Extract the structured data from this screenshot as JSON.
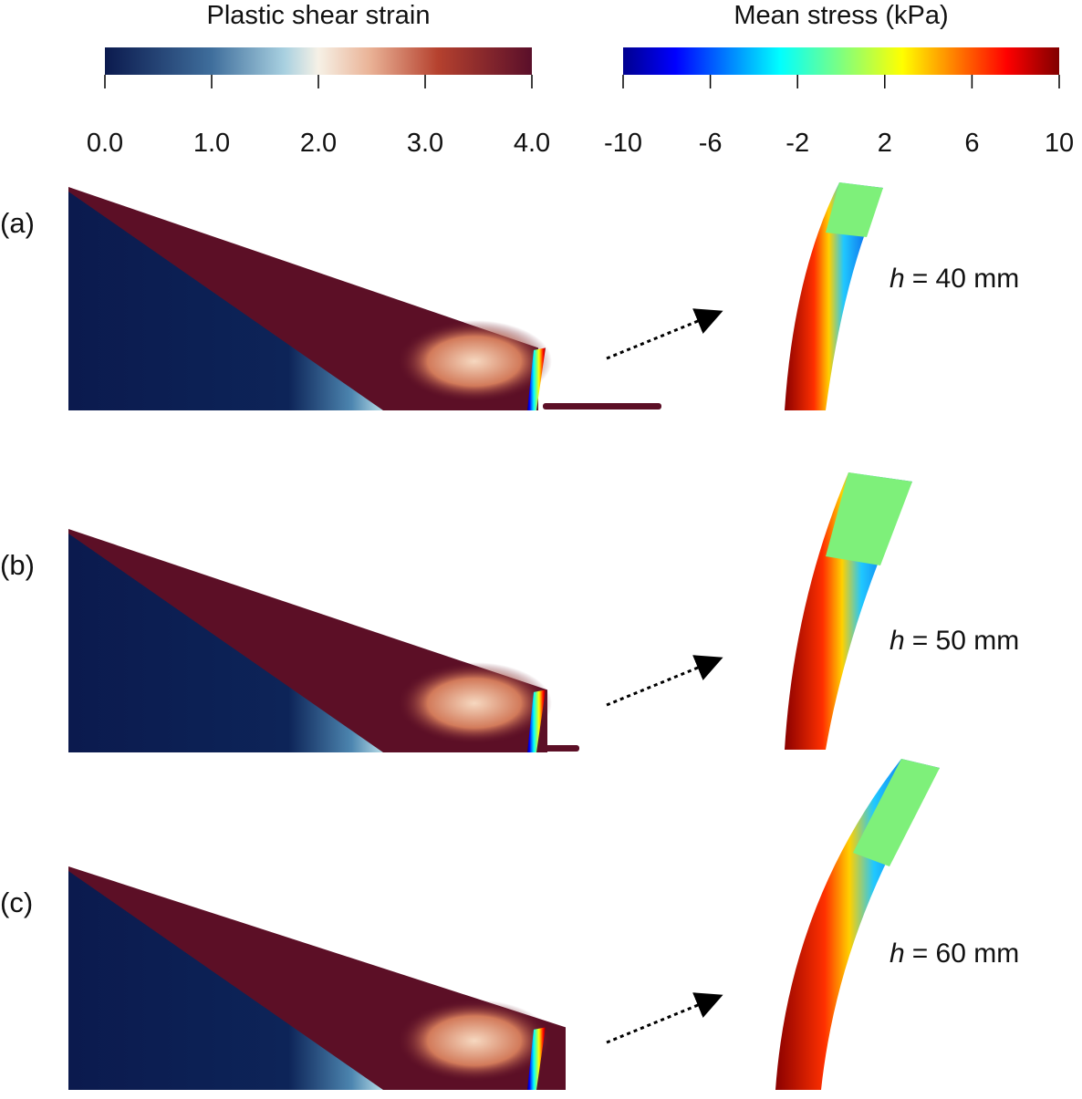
{
  "colorbars": [
    {
      "title": "Plastic shear strain",
      "ticks": [
        "0.0",
        "1.0",
        "2.0",
        "3.0",
        "4.0"
      ]
    },
    {
      "title": "Mean stress (kPa)",
      "ticks": [
        "-10",
        "-6",
        "-2",
        "2",
        "6",
        "10"
      ]
    }
  ],
  "panels": [
    {
      "label": "(a)",
      "h_symbol": "h",
      "h_text": "= 40 mm"
    },
    {
      "label": "(b)",
      "h_symbol": "h",
      "h_text": "= 50 mm"
    },
    {
      "label": "(c)",
      "h_symbol": "h",
      "h_text": "= 60 mm"
    }
  ]
}
